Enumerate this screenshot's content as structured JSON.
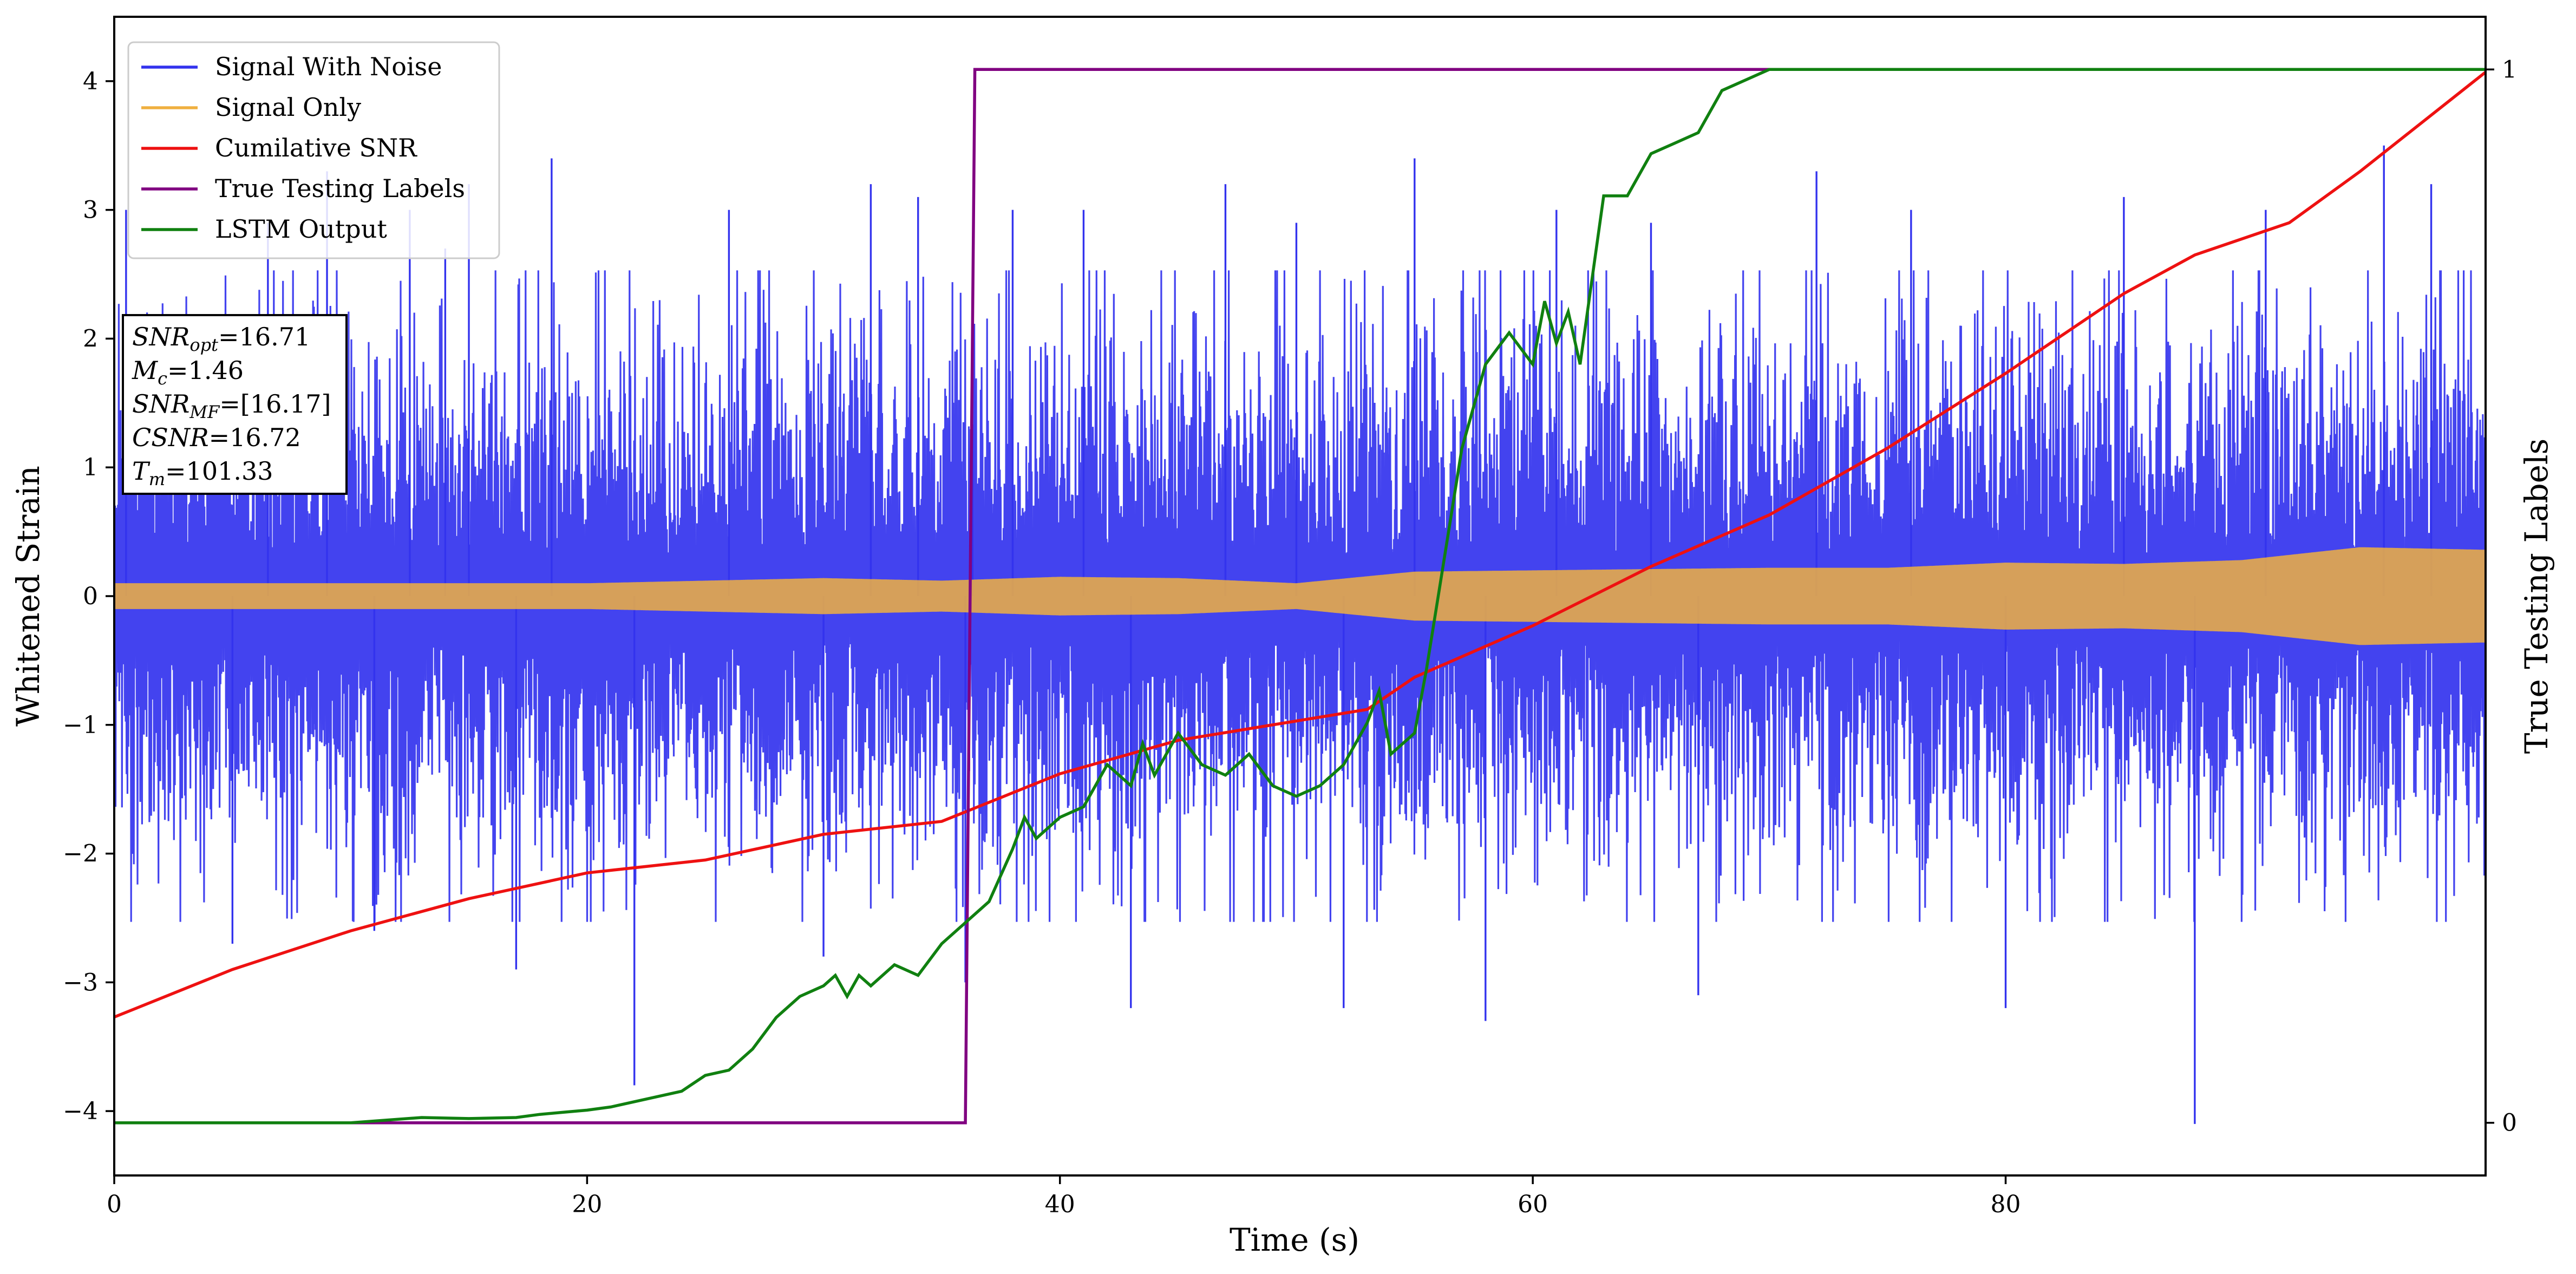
{
  "chart_data": {
    "type": "line",
    "xlabel": "Time (s)",
    "ylabel": "Whitened Strain",
    "y2label": "True Testing Labels",
    "xlim": [
      0,
      100.3
    ],
    "ylim": [
      -4.5,
      4.5
    ],
    "y2lim": [
      -0.05,
      1.05
    ],
    "x_ticks": [
      0,
      20,
      40,
      60,
      80
    ],
    "y_ticks": [
      -4,
      -3,
      -2,
      -1,
      0,
      1,
      2,
      3,
      4
    ],
    "y2_ticks": [
      0,
      1
    ],
    "grid": false,
    "legend_position": "top-left",
    "legend": [
      {
        "label": "Signal With Noise",
        "color": "#3333ee"
      },
      {
        "label": "Signal Only",
        "color": "#f0b040"
      },
      {
        "label": "Cumilative SNR",
        "color": "#ee1111"
      },
      {
        "label": "True Testing Labels",
        "color": "#800080"
      },
      {
        "label": "LSTM Output",
        "color": "#108010"
      }
    ],
    "annotations": [
      {
        "name": "SNR",
        "sub": "opt",
        "value": "=16.71"
      },
      {
        "name": "M",
        "sub": "c",
        "value": "=1.46"
      },
      {
        "name": "SNR",
        "sub": "MF",
        "value": "=[16.17]"
      },
      {
        "name": "CSNR",
        "sub": "",
        "value": "=16.72"
      },
      {
        "name": "T",
        "sub": "m",
        "value": "=101.33"
      }
    ],
    "series": [
      {
        "name": "Signal With Noise",
        "color": "#3333ee",
        "band_envelope": {
          "x": [
            0,
            20,
            40,
            60,
            80,
            100.3
          ],
          "upper": [
            2.3,
            2.3,
            2.3,
            2.3,
            2.3,
            2.3
          ],
          "lower": [
            -2.3,
            -2.3,
            -2.3,
            -2.3,
            -2.3,
            -2.3
          ],
          "spikes": [
            {
              "x": 0.5,
              "y": 3.0
            },
            {
              "x": 5.0,
              "y": -2.7
            },
            {
              "x": 6.5,
              "y": 2.9
            },
            {
              "x": 9.0,
              "y": 3.3
            },
            {
              "x": 11.0,
              "y": -2.6
            },
            {
              "x": 12.5,
              "y": 3.0
            },
            {
              "x": 14.0,
              "y": 2.7
            },
            {
              "x": 15.0,
              "y": 3.2
            },
            {
              "x": 17.0,
              "y": -2.9
            },
            {
              "x": 18.5,
              "y": 3.4
            },
            {
              "x": 22.0,
              "y": -3.8
            },
            {
              "x": 26.0,
              "y": 3.0
            },
            {
              "x": 30.0,
              "y": -2.8
            },
            {
              "x": 32.0,
              "y": 3.2
            },
            {
              "x": 34.0,
              "y": 3.1
            },
            {
              "x": 36.0,
              "y": -3.0
            },
            {
              "x": 36.3,
              "y": 2.4
            },
            {
              "x": 38.0,
              "y": 3.0
            },
            {
              "x": 41.0,
              "y": 3.0
            },
            {
              "x": 43.0,
              "y": -3.2
            },
            {
              "x": 47.0,
              "y": 3.2
            },
            {
              "x": 50.0,
              "y": 2.9
            },
            {
              "x": 52.0,
              "y": -3.2
            },
            {
              "x": 55.0,
              "y": 3.4
            },
            {
              "x": 58.0,
              "y": -3.3
            },
            {
              "x": 61.0,
              "y": 3.0
            },
            {
              "x": 65.0,
              "y": 2.9
            },
            {
              "x": 67.0,
              "y": -3.1
            },
            {
              "x": 72.0,
              "y": 3.3
            },
            {
              "x": 76.0,
              "y": 3.0
            },
            {
              "x": 80.0,
              "y": -3.2
            },
            {
              "x": 85.0,
              "y": 3.1
            },
            {
              "x": 88.0,
              "y": -4.1
            },
            {
              "x": 91.0,
              "y": 3.0
            },
            {
              "x": 96.0,
              "y": 3.5
            },
            {
              "x": 98.0,
              "y": 3.2
            }
          ]
        }
      },
      {
        "name": "Signal Only",
        "color": "#f0b040",
        "amplitude_envelope": {
          "x": [
            0,
            20,
            25,
            30,
            35,
            40,
            45,
            50,
            55,
            60,
            65,
            70,
            75,
            80,
            85,
            90,
            95,
            100.3
          ],
          "amplitude": [
            0.1,
            0.1,
            0.12,
            0.14,
            0.12,
            0.15,
            0.14,
            0.1,
            0.19,
            0.2,
            0.21,
            0.22,
            0.22,
            0.26,
            0.25,
            0.28,
            0.38,
            0.36
          ]
        }
      },
      {
        "name": "Cumilative SNR",
        "color": "#ee1111",
        "axis": "left",
        "x": [
          0,
          5,
          10,
          15,
          20,
          25,
          30,
          35,
          40,
          45,
          50,
          53,
          55,
          60,
          65,
          70,
          75,
          80,
          85,
          88,
          92,
          95,
          100.3
        ],
        "values": [
          -3.27,
          -2.9,
          -2.6,
          -2.35,
          -2.15,
          -2.05,
          -1.85,
          -1.75,
          -1.38,
          -1.12,
          -0.97,
          -0.88,
          -0.63,
          -0.23,
          0.23,
          0.63,
          1.15,
          1.73,
          2.35,
          2.65,
          2.9,
          3.3,
          4.07
        ]
      },
      {
        "name": "True Testing Labels",
        "color": "#800080",
        "axis": "right",
        "x": [
          0,
          36.0,
          36.4,
          100.3
        ],
        "values": [
          0,
          0,
          1,
          1
        ]
      },
      {
        "name": "LSTM Output",
        "color": "#108010",
        "axis": "right",
        "x": [
          0,
          10,
          13,
          15,
          17,
          18,
          19,
          20,
          21,
          22,
          24,
          25,
          26,
          27,
          28,
          29,
          30,
          30.5,
          31,
          31.5,
          32,
          33,
          34,
          35,
          36,
          37,
          38,
          38.5,
          39,
          40,
          41,
          42,
          43,
          43.5,
          44,
          45,
          46,
          47,
          48,
          49,
          50,
          51,
          52,
          53,
          53.5,
          54,
          55,
          55.5,
          56,
          57,
          58,
          59,
          60,
          60.5,
          61,
          61.5,
          62,
          63,
          64,
          65,
          66,
          67,
          68,
          69,
          70,
          72,
          75,
          100.3
        ],
        "values": [
          0,
          0.0,
          0.005,
          0.004,
          0.005,
          0.008,
          0.01,
          0.012,
          0.015,
          0.02,
          0.03,
          0.045,
          0.05,
          0.07,
          0.1,
          0.12,
          0.13,
          0.14,
          0.12,
          0.14,
          0.13,
          0.15,
          0.14,
          0.17,
          0.19,
          0.21,
          0.26,
          0.29,
          0.27,
          0.29,
          0.3,
          0.34,
          0.32,
          0.36,
          0.33,
          0.37,
          0.34,
          0.33,
          0.35,
          0.32,
          0.31,
          0.32,
          0.34,
          0.38,
          0.41,
          0.35,
          0.37,
          0.43,
          0.5,
          0.64,
          0.72,
          0.75,
          0.72,
          0.78,
          0.74,
          0.77,
          0.72,
          0.88,
          0.88,
          0.92,
          0.93,
          0.94,
          0.98,
          0.99,
          1.0,
          1.0,
          1.0,
          1.0
        ]
      }
    ]
  }
}
